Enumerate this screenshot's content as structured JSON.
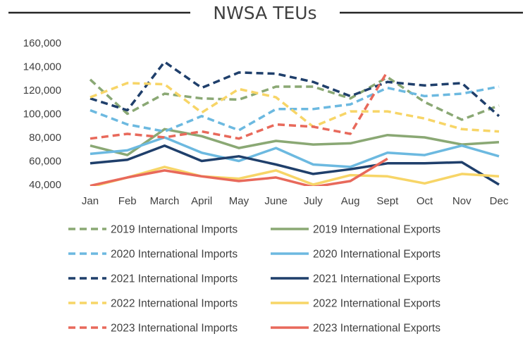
{
  "chart_data": {
    "type": "line",
    "title": "NWSA TEUs",
    "xlabel": "",
    "ylabel": "",
    "categories": [
      "Jan",
      "Feb",
      "March",
      "April",
      "May",
      "June",
      "July",
      "Aug",
      "Sept",
      "Oct",
      "Nov",
      "Dec"
    ],
    "ylim": [
      40000,
      160000
    ],
    "yticks": [
      40000,
      60000,
      80000,
      100000,
      120000,
      140000,
      160000
    ],
    "ytick_labels": [
      "40,000",
      "60,000",
      "80,000",
      "100,000",
      "120,000",
      "140,000",
      "160,000"
    ],
    "grid": false,
    "legend_position": "bottom",
    "series": [
      {
        "name": "2019 International Imports",
        "color": "#8aa874",
        "dash": true,
        "values": [
          129000,
          100000,
          117000,
          113000,
          112000,
          123000,
          123000,
          113000,
          131000,
          110000,
          95000,
          107000
        ]
      },
      {
        "name": "2019 International Exports",
        "color": "#8aa874",
        "dash": false,
        "values": [
          73000,
          65000,
          87000,
          81000,
          71000,
          77000,
          74000,
          75000,
          82000,
          80000,
          74000,
          76000
        ]
      },
      {
        "name": "2020 International Imports",
        "color": "#6cb9e0",
        "dash": true,
        "values": [
          103000,
          91000,
          85000,
          98000,
          86000,
          104000,
          104000,
          108000,
          122000,
          115000,
          117000,
          123000
        ]
      },
      {
        "name": "2020 International Exports",
        "color": "#6cb9e0",
        "dash": false,
        "values": [
          66000,
          69000,
          80000,
          67000,
          60000,
          71000,
          57000,
          55000,
          67000,
          65000,
          73000,
          64000
        ]
      },
      {
        "name": "2021 International Imports",
        "color": "#1f3f6b",
        "dash": true,
        "values": [
          113000,
          103000,
          144000,
          122000,
          135000,
          134000,
          127000,
          115000,
          127000,
          124000,
          126000,
          98000
        ]
      },
      {
        "name": "2021 International Exports",
        "color": "#1f3f6b",
        "dash": false,
        "values": [
          58000,
          61000,
          73000,
          60000,
          64000,
          57000,
          49000,
          53000,
          58000,
          58000,
          59000,
          40000
        ]
      },
      {
        "name": "2022 International Imports",
        "color": "#f7d567",
        "dash": true,
        "values": [
          114000,
          126000,
          125000,
          101000,
          121000,
          114000,
          89000,
          102000,
          102000,
          96000,
          87000,
          85000
        ]
      },
      {
        "name": "2022 International Exports",
        "color": "#f7d567",
        "dash": false,
        "values": [
          38000,
          46000,
          55000,
          47000,
          45000,
          52000,
          40000,
          48000,
          47000,
          41000,
          49000,
          47000
        ]
      },
      {
        "name": "2023 International Imports",
        "color": "#e8695b",
        "dash": true,
        "values": [
          79000,
          83000,
          80000,
          85000,
          79000,
          91000,
          89000,
          83000,
          136000,
          null,
          null,
          null
        ]
      },
      {
        "name": "2023 International Exports",
        "color": "#e8695b",
        "dash": false,
        "values": [
          39000,
          46000,
          52000,
          47000,
          43000,
          46000,
          38000,
          43000,
          62000,
          null,
          null,
          null
        ]
      }
    ]
  }
}
